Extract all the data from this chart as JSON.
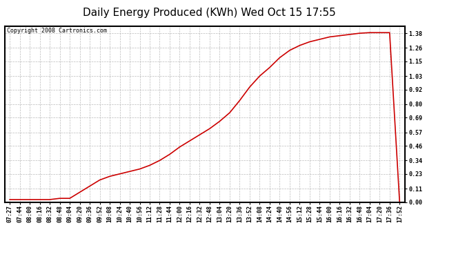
{
  "title": "Daily Energy Produced (KWh) Wed Oct 15 17:55",
  "copyright_text": "Copyright 2008 Cartronics.com",
  "line_color": "#cc0000",
  "bg_color": "#ffffff",
  "grid_color": "#aaaaaa",
  "yticks": [
    0.0,
    0.11,
    0.23,
    0.34,
    0.46,
    0.57,
    0.69,
    0.8,
    0.92,
    1.03,
    1.15,
    1.26,
    1.38
  ],
  "ylim": [
    0.0,
    1.44
  ],
  "xtick_labels": [
    "07:27",
    "07:44",
    "08:00",
    "08:16",
    "08:32",
    "08:48",
    "09:04",
    "09:20",
    "09:36",
    "09:52",
    "10:08",
    "10:24",
    "10:40",
    "10:56",
    "11:12",
    "11:28",
    "11:44",
    "12:00",
    "12:16",
    "12:32",
    "12:48",
    "13:04",
    "13:20",
    "13:36",
    "13:52",
    "14:08",
    "14:24",
    "14:40",
    "14:56",
    "15:12",
    "15:28",
    "15:44",
    "16:00",
    "16:16",
    "16:32",
    "16:48",
    "17:04",
    "17:20",
    "17:36",
    "17:52"
  ],
  "x_data": [
    0,
    1,
    2,
    3,
    4,
    5,
    6,
    7,
    8,
    9,
    10,
    11,
    12,
    13,
    14,
    15,
    16,
    17,
    18,
    19,
    20,
    21,
    22,
    23,
    24,
    25,
    26,
    27,
    28,
    29,
    30,
    31,
    32,
    33,
    34,
    35,
    36,
    37,
    38,
    39
  ],
  "y_data": [
    0.02,
    0.02,
    0.02,
    0.02,
    0.02,
    0.03,
    0.03,
    0.08,
    0.13,
    0.18,
    0.21,
    0.23,
    0.25,
    0.27,
    0.3,
    0.34,
    0.39,
    0.45,
    0.5,
    0.55,
    0.6,
    0.66,
    0.73,
    0.83,
    0.94,
    1.03,
    1.1,
    1.18,
    1.24,
    1.28,
    1.31,
    1.33,
    1.35,
    1.36,
    1.37,
    1.38,
    1.385,
    1.385,
    1.385,
    0.0
  ],
  "title_fontsize": 11,
  "copyright_fontsize": 6,
  "tick_fontsize": 6,
  "line_width": 1.2,
  "fig_width": 6.9,
  "fig_height": 3.75,
  "fig_dpi": 100
}
